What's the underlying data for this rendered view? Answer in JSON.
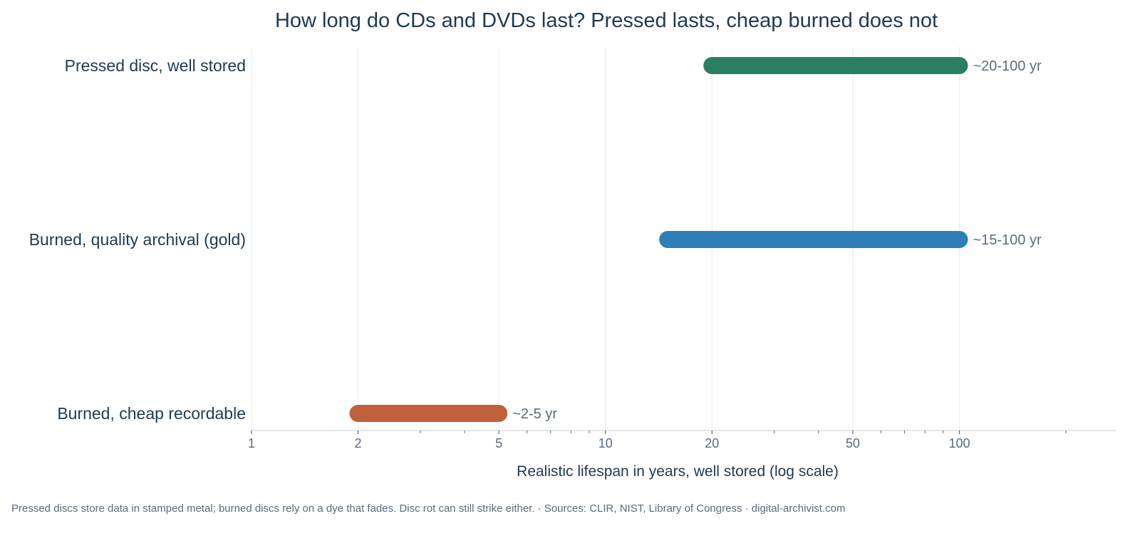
{
  "chart_data": {
    "type": "range_bar",
    "title": "How long do CDs and DVDs last? Pressed lasts, cheap burned does not",
    "xlabel": "Realistic lifespan in years, well stored (log scale)",
    "x_scale": "log",
    "xlim": [
      1,
      200
    ],
    "x_tick_labels": [
      {
        "value": 1,
        "label": "1"
      },
      {
        "value": 2,
        "label": "2"
      },
      {
        "value": 5,
        "label": "5"
      },
      {
        "value": 10,
        "label": "10"
      },
      {
        "value": 20,
        "label": "20"
      },
      {
        "value": 50,
        "label": "50"
      },
      {
        "value": 100,
        "label": "100"
      }
    ],
    "x_minor_ticks": [
      3,
      4,
      6,
      7,
      8,
      9,
      30,
      40,
      60,
      70,
      80,
      90,
      200
    ],
    "grid": true,
    "categories": [
      "Pressed disc, well stored",
      "Burned, quality archival (gold)",
      "Burned, cheap recordable"
    ],
    "ranges": [
      {
        "category": "Pressed disc, well stored",
        "low": 20,
        "high": 100,
        "label": "~20-100 yr",
        "color": "#2a7f62"
      },
      {
        "category": "Burned, quality archival (gold)",
        "low": 15,
        "high": 100,
        "label": "~15-100 yr",
        "color": "#2e7fb8"
      },
      {
        "category": "Burned, cheap recordable",
        "low": 2,
        "high": 5,
        "label": "~2-5 yr",
        "color": "#c0603a"
      }
    ]
  },
  "footer": {
    "note": "Pressed discs store data in stamped metal; burned discs rely on a dye that fades. Disc rot can still strike either.  ·  Sources: CLIR, NIST, Library of Congress  ·  digital-archivist.com"
  }
}
